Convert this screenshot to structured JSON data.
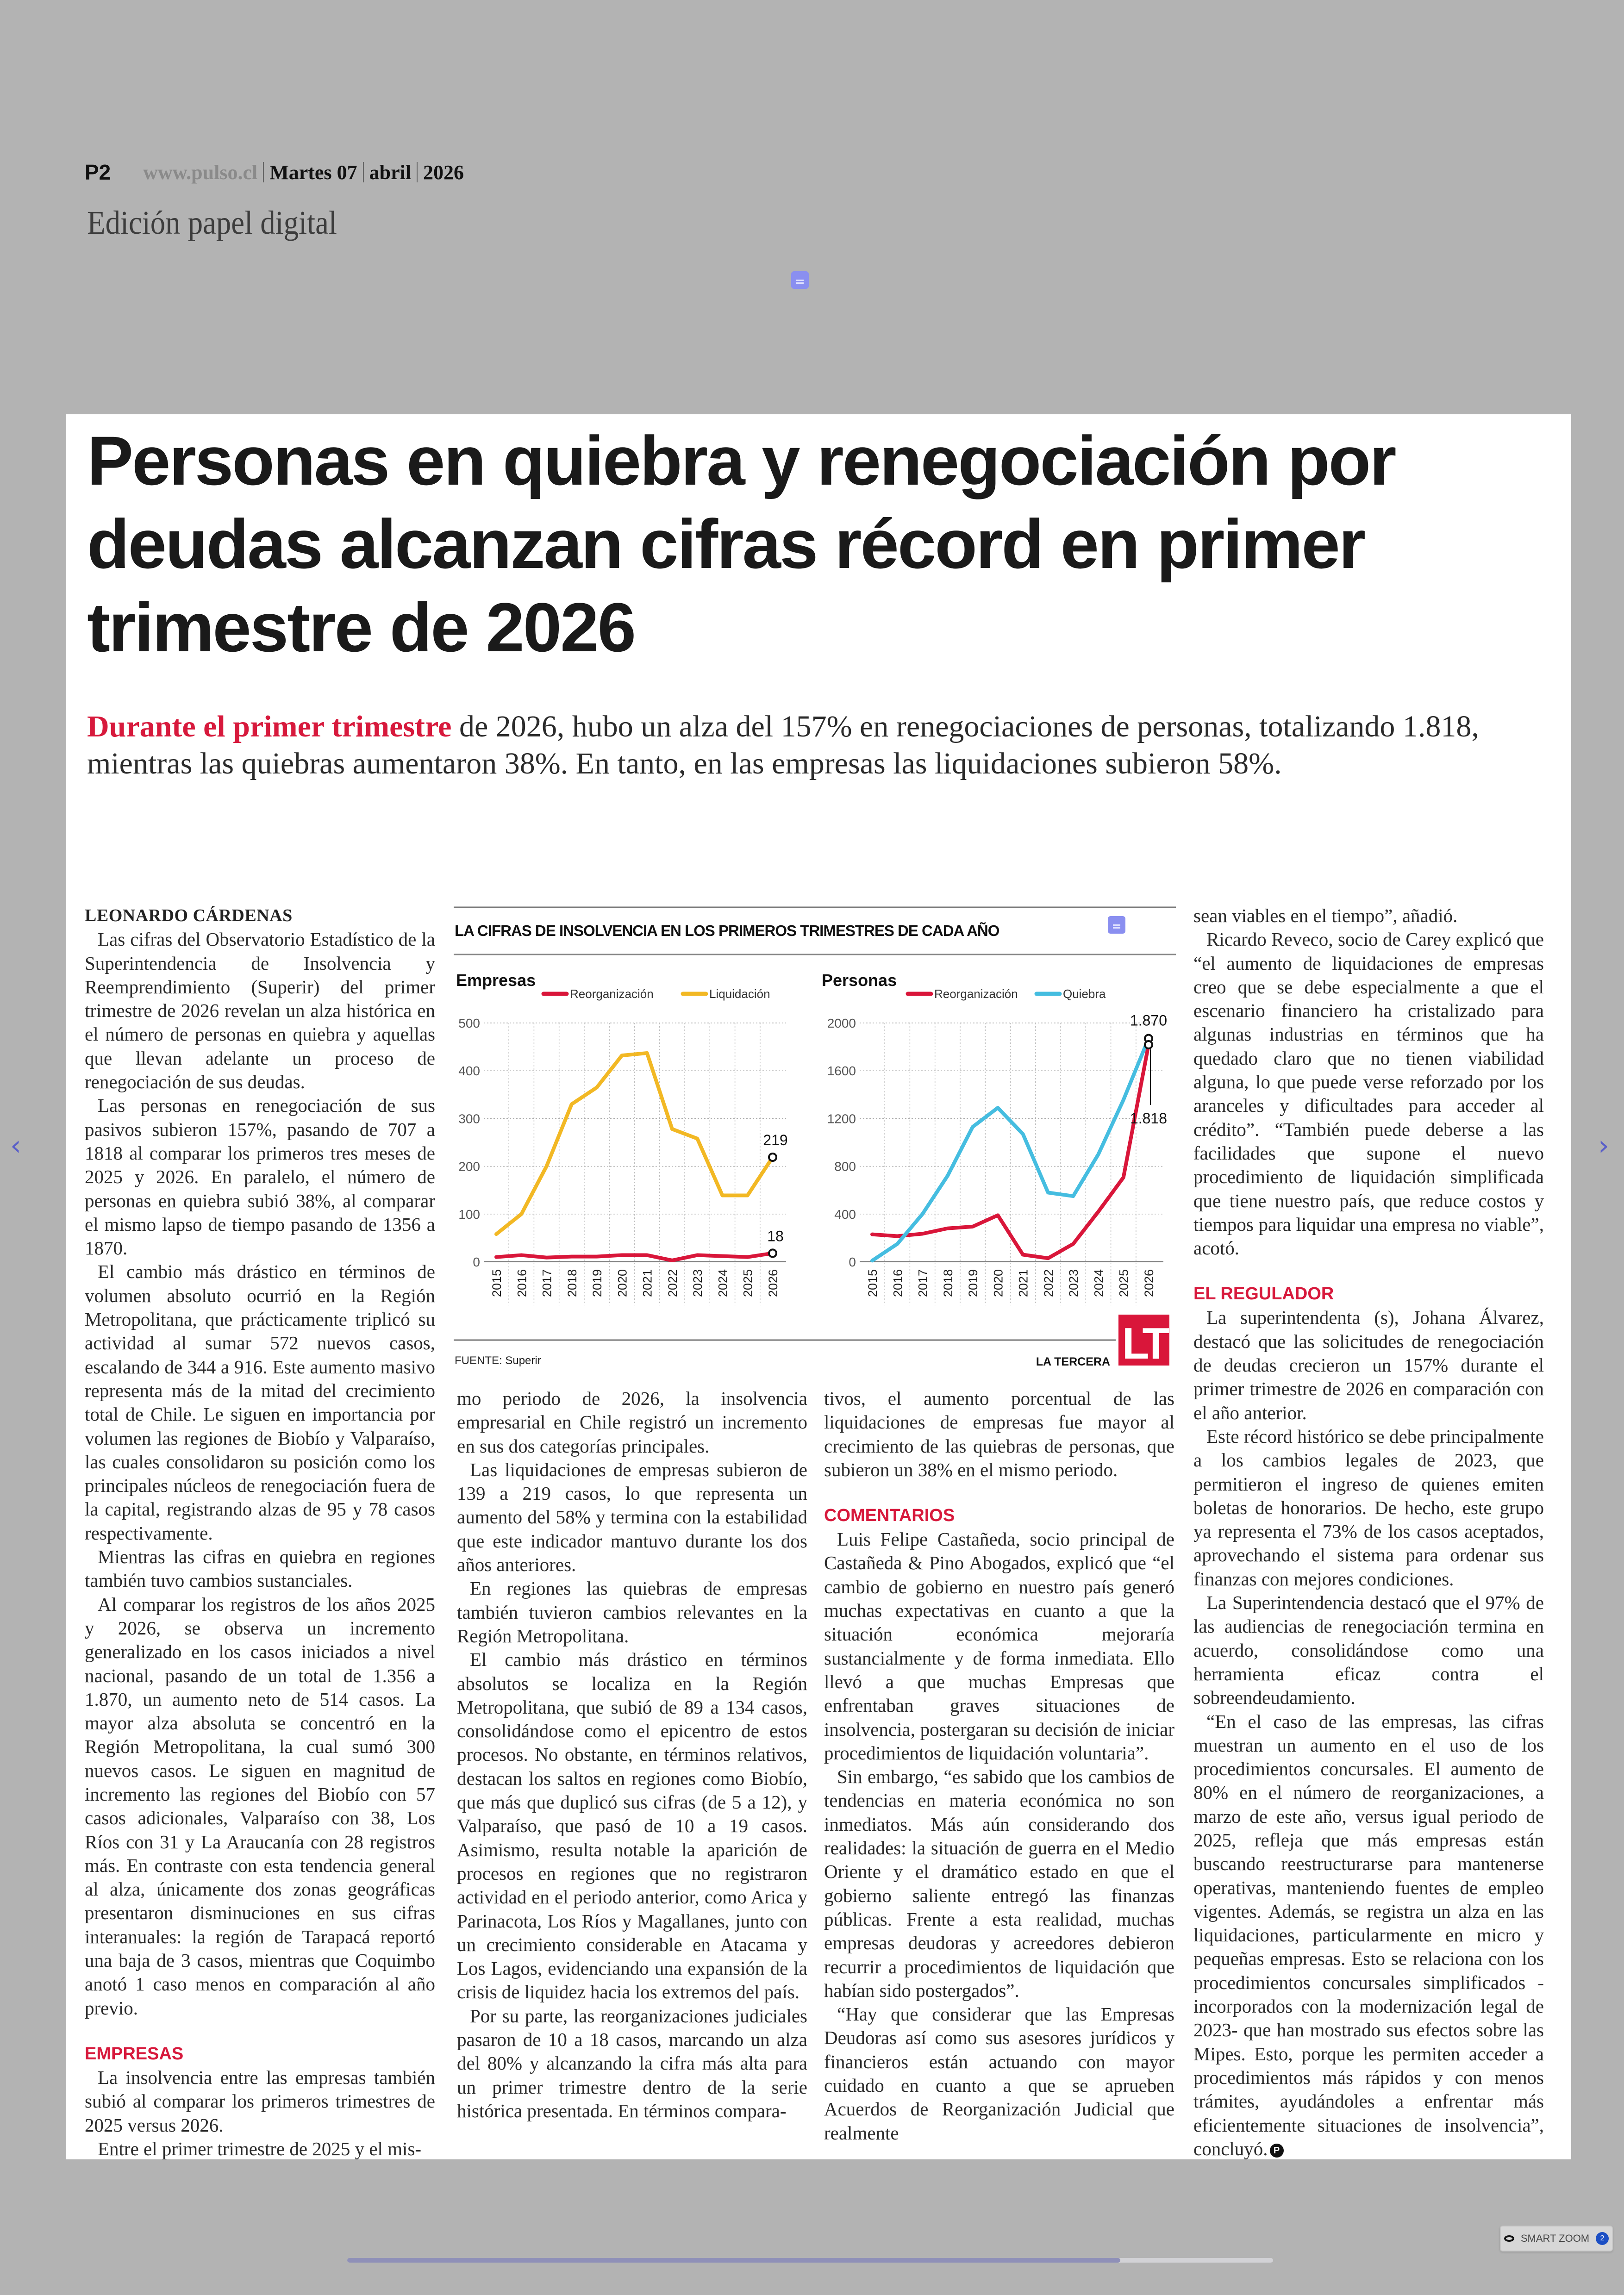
{
  "header": {
    "page": "P2",
    "site": "www.pulso.cl",
    "day": "Martes 07",
    "month": "abril",
    "year": "2026",
    "edition": "Edición papel digital"
  },
  "article": {
    "headline": "Personas en quiebra y renegociación por deudas alcanzan cifras récord en primer trimestre de 2026",
    "deck_lead": "Durante el primer trimestre",
    "deck_rest": " de 2026, hubo un alza del 157% en renegociaciones de personas, totalizando 1.818, mientras las quiebras aumentaron 38%. En tanto, en las empresas las liquidaciones subieron 58%.",
    "author": "LEONARDO CÁRDENAS",
    "col1": [
      "Las cifras del Observatorio Estadístico de la Superintendencia de Insolvencia y Reemprendimiento (Superir) del primer trimestre de 2026 revelan un alza histórica en el número de personas en quiebra y aquellas que llevan adelante un proceso de renegociación de sus deudas.",
      "Las personas en renegociación de sus pasivos subieron 157%, pasando de 707 a 1818 al comparar los primeros tres meses de 2025 y 2026. En paralelo, el número de personas en quiebra subió 38%, al comparar el mismo lapso de tiempo pasando de 1356 a 1870.",
      "El cambio más drástico en términos de volumen absoluto ocurrió en la Región Metropolitana, que prácticamente triplicó su actividad al sumar 572 nuevos casos, escalando de 344 a 916. Este aumento masivo representa más de la mitad del crecimiento total de Chile. Le siguen en importancia por volumen las regiones de Biobío y Valparaíso, las cuales consolidaron su posición como los principales núcleos de renegociación fuera de la capital, registrando alzas de 95 y 78 casos respectivamente.",
      "Mientras las cifras en quiebra en regiones también tuvo cambios sustanciales.",
      "Al comparar los registros de los años 2025 y 2026, se observa un incremento generalizado en los casos iniciados a nivel nacional, pasando de un total de 1.356 a 1.870, un aumento neto de 514 casos. La mayor alza absoluta se concentró en la Región Metropolitana, la cual sumó 300 nuevos casos. Le siguen en magnitud de incremento las regiones del Biobío con 57 casos adicionales, Valparaíso con 38, Los Ríos con 31 y La Araucanía con 28 registros más. En contraste con esta tendencia general al alza, únicamente dos zonas geográficas presentaron disminuciones en sus cifras interanuales: la región de Tarapacá reportó una baja de 3 casos, mientras que Coquimbo anotó 1 caso menos en comparación al año previo."
    ],
    "heading_empresas": "EMPRESAS",
    "col1_empresas": [
      "La insolvencia entre las empresas también subió al comparar los primeros trimestres de 2025 versus 2026.",
      "Entre el primer trimestre de 2025 y el mis-"
    ],
    "col2": [
      "mo periodo de 2026, la insolvencia empresarial en Chile registró un incremento en sus dos categorías principales.",
      "Las liquidaciones de empresas subieron de 139 a 219 casos, lo que representa un aumento del 58% y termina con la estabilidad que este indicador mantuvo durante los dos años anteriores.",
      "En regiones las quiebras de empresas también tuvieron cambios relevantes en la Región Metropolitana.",
      "El cambio más drástico en términos absolutos se localiza en la Región Metropolitana, que subió de 89 a 134 casos, consolidándose como el epicentro de estos procesos. No obstante, en términos relativos, destacan los saltos en regiones como Biobío, que más que duplicó sus cifras (de 5 a 12), y Valparaíso, que pasó de 10 a 19 casos. Asimismo, resulta notable la aparición de procesos en regiones que no registraron actividad en el periodo anterior, como Arica y Parinacota, Los Ríos y Magallanes, junto con un crecimiento considerable en Atacama y Los Lagos, evidenciando una expansión de la crisis de liquidez hacia los extremos del país.",
      "Por su parte, las reorganizaciones judiciales pasaron de 10 a 18 casos, marcando un alza del 80% y alcanzando la cifra más alta para un primer trimestre dentro de la serie histórica presentada. En términos compara-"
    ],
    "col3_intro": "tivos, el aumento porcentual de las liquidaciones de empresas fue mayor al crecimiento de las quiebras de personas, que subieron un 38% en el mismo periodo.",
    "heading_comentarios": "COMENTARIOS",
    "col3": [
      "Luis Felipe Castañeda, socio principal de Castañeda & Pino Abogados, explicó que “el cambio de gobierno en nuestro país generó muchas expectativas en cuanto a que la situación económica mejoraría sustancialmente y de forma inmediata. Ello llevó a que muchas Empresas que enfrentaban graves situaciones de insolvencia, postergaran su decisión de iniciar procedimientos de liquidación voluntaria”.",
      "Sin embargo, “es sabido que los cambios de tendencias en materia económica no son inmediatos. Más aún considerando dos realidades: la situación de guerra en el Medio Oriente y el dramático estado en que el gobierno saliente entregó las finanzas públicas. Frente a esta realidad, muchas empresas deudoras y acreedores debieron recurrir a procedimientos de liquidación que habían sido postergados”.",
      "“Hay que considerar que las Empresas Deudoras así como sus asesores jurídicos y financieros están actuando con mayor cuidado en cuanto a que se aprueben Acuerdos de Reorganización Judicial que realmente"
    ],
    "col4_intro": "sean viables en el tiempo”, añadió.",
    "col4": [
      "Ricardo Reveco, socio de Carey explicó que “el aumento de liquidaciones de empresas creo que se debe especialmente a que el escenario financiero ha cristalizado para algunas industrias en términos que ha quedado claro que no tienen viabilidad alguna, lo que puede verse reforzado por los aranceles y dificultades para acceder al crédito”. “También puede deberse a las facilidades que supone el nuevo procedimiento de liquidación simplificada que tiene nuestro país, que reduce costos y tiempos para liquidar una empresa no viable”, acotó."
    ],
    "heading_regulador": "EL REGULADOR",
    "col4_regulador": [
      "La superintendenta (s), Johana Álvarez, destacó que las solicitudes de renegociación de deudas crecieron un 157% durante el primer trimestre de 2026 en comparación con el año anterior.",
      "Este récord histórico se debe principalmente a los cambios legales de 2023, que permitieron el ingreso de quienes emiten boletas de honorarios. De hecho, este grupo ya representa el 73% de los casos aceptados, aprovechando el sistema para ordenar sus finanzas con mejores condiciones.",
      "La Superintendencia destacó que el 97% de las audiencias de renegociación termina en acuerdo, consolidándose como una herramienta eficaz contra el sobreendeudamiento.",
      "“En el caso de las empresas, las cifras muestran un aumento en el uso de los procedimientos concursales. El aumento de 80% en el número de reorganizaciones, a marzo de este año, versus igual periodo de 2025, refleja que más empresas están buscando reestructurarse para mantenerse operativas, manteniendo fuentes de empleo vigentes. Además, se registra un alza en las liquidaciones, particularmente en micro y pequeñas empresas. Esto se relaciona con los procedimientos concursales simplificados -incorporados con la modernización legal de 2023- que han mostrado sus efectos sobre las Mipes. Esto, porque les permiten acceder a procedimientos más rápidos y con menos trámites, ayudándoles a enfrentar más eficientemente situaciones de insolvencia”, concluyó."
    ],
    "end_mark": "P"
  },
  "viewer": {
    "smart_zoom_label": "SMART ZOOM",
    "smart_zoom_count": "2",
    "prev_icon": "chevron-left-icon",
    "next_icon": "chevron-right-icon",
    "scroll_progress": 0.835
  },
  "colors": {
    "accent": "#d7193c",
    "reorganizacion": "#d9163a",
    "liquidacion": "#f2b824",
    "quiebra": "#45bde0"
  },
  "chart_data": [
    {
      "type": "line",
      "title": "LA CIFRAS DE INSOLVENCIA EN LOS PRIMEROS TRIMESTRES DE CADA AÑO",
      "subtitle": "Empresas",
      "x": [
        "2015",
        "2016",
        "2017",
        "2018",
        "2019",
        "2020",
        "2021",
        "2022",
        "2023",
        "2024",
        "2025",
        "2026"
      ],
      "series": [
        {
          "name": "Reorganización",
          "color": "#d9163a",
          "values": [
            10,
            14,
            9,
            11,
            11,
            14,
            14,
            3,
            14,
            12,
            10,
            18
          ]
        },
        {
          "name": "Liquidación",
          "color": "#f2b824",
          "values": [
            58,
            100,
            200,
            330,
            365,
            432,
            437,
            278,
            258,
            139,
            139,
            219
          ]
        }
      ],
      "ylim": [
        0,
        500
      ],
      "yticks": [
        0,
        100,
        200,
        300,
        400,
        500
      ],
      "annotations": [
        {
          "series": "Liquidación",
          "x": "2026",
          "label": "219"
        },
        {
          "series": "Reorganización",
          "x": "2026",
          "label": "18"
        }
      ],
      "grid": true,
      "legend": "top",
      "source": "FUENTE: Superir"
    },
    {
      "type": "line",
      "subtitle": "Personas",
      "x": [
        "2015",
        "2016",
        "2017",
        "2018",
        "2019",
        "2020",
        "2021",
        "2022",
        "2023",
        "2024",
        "2025",
        "2026"
      ],
      "series": [
        {
          "name": "Reorganización",
          "color": "#d9163a",
          "values": [
            230,
            215,
            235,
            280,
            295,
            390,
            60,
            30,
            150,
            420,
            707,
            1818
          ]
        },
        {
          "name": "Quiebra",
          "color": "#45bde0",
          "values": [
            10,
            150,
            400,
            720,
            1130,
            1290,
            1070,
            580,
            550,
            900,
            1356,
            1870
          ]
        }
      ],
      "ylim": [
        0,
        2000
      ],
      "yticks": [
        0,
        400,
        800,
        1200,
        1600,
        2000
      ],
      "annotations": [
        {
          "series": "Quiebra",
          "x": "2026",
          "label": "1.870"
        },
        {
          "series": "Reorganización",
          "x": "2026",
          "label": "1.818"
        }
      ],
      "grid": true,
      "legend": "top",
      "credit": "LA TERCERA",
      "logo_text": "LT"
    }
  ]
}
